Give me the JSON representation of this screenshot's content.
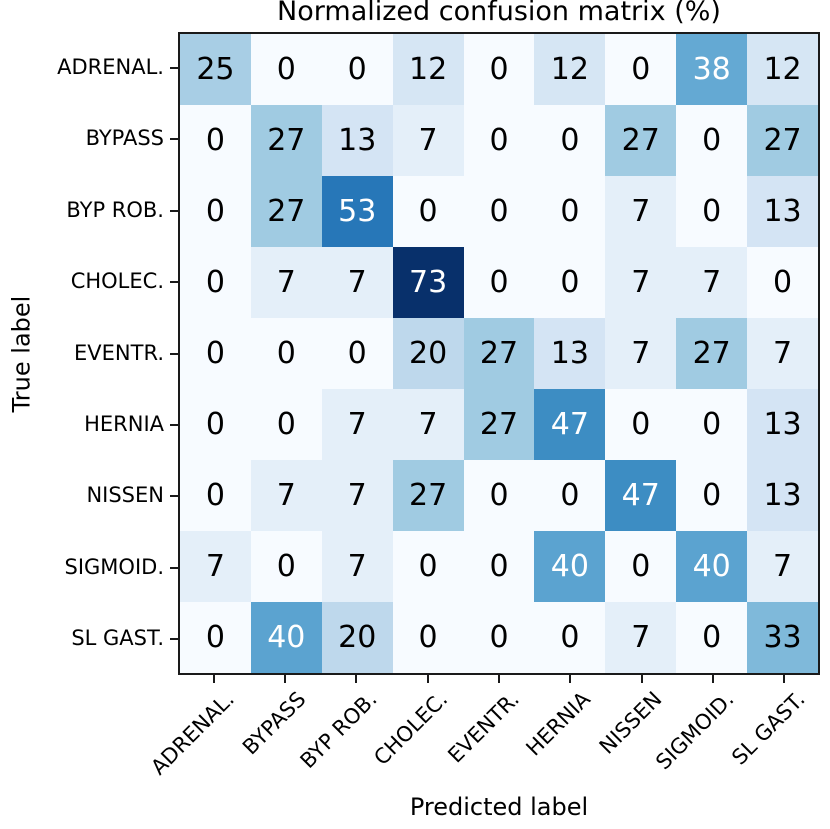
{
  "chart_data": {
    "type": "heatmap",
    "title": "Normalized confusion matrix (%)",
    "xlabel": "Predicted label",
    "ylabel": "True label",
    "categories": [
      "ADRENAL.",
      "BYPASS",
      "BYP ROB.",
      "CHOLEC.",
      "EVENTR.",
      "HERNIA",
      "NISSEN",
      "SIGMOID.",
      "SL GAST."
    ],
    "x_tick_labels": [
      "ADRENAL.",
      "BYPASS",
      "BYP ROB.",
      "CHOLEC.",
      "EVENTR.",
      "HERNIA",
      "NISSEN",
      "SIGMOID.",
      "SL GAST."
    ],
    "y_tick_labels": [
      "ADRENAL.",
      "BYPASS",
      "BYP ROB.",
      "CHOLEC.",
      "EVENTR.",
      "HERNIA",
      "NISSEN",
      "SIGMOID.",
      "SL GAST."
    ],
    "matrix": [
      [
        25,
        0,
        0,
        12,
        0,
        12,
        0,
        38,
        12
      ],
      [
        0,
        27,
        13,
        7,
        0,
        0,
        27,
        0,
        27
      ],
      [
        0,
        27,
        53,
        0,
        0,
        0,
        7,
        0,
        13
      ],
      [
        0,
        7,
        7,
        73,
        0,
        0,
        7,
        7,
        0
      ],
      [
        0,
        0,
        0,
        20,
        27,
        13,
        7,
        27,
        7
      ],
      [
        0,
        0,
        7,
        7,
        27,
        47,
        0,
        0,
        13
      ],
      [
        0,
        7,
        7,
        27,
        0,
        0,
        47,
        0,
        13
      ],
      [
        7,
        0,
        7,
        0,
        0,
        40,
        0,
        40,
        7
      ],
      [
        0,
        40,
        20,
        0,
        0,
        0,
        7,
        0,
        33
      ]
    ],
    "value_unit": "%",
    "colormap": "Blues",
    "vmin": 0,
    "vmax": 73,
    "text_color_threshold": 36.5,
    "grid": false,
    "legend": "none",
    "colors": {
      "cmap_low": "#f7fbff",
      "cmap_high": "#08306b",
      "cell_text_dark": "#000000",
      "cell_text_light": "#ffffff",
      "axis_edge": "#1a1a1a",
      "label_text": "#000000",
      "background": "#ffffff"
    }
  }
}
